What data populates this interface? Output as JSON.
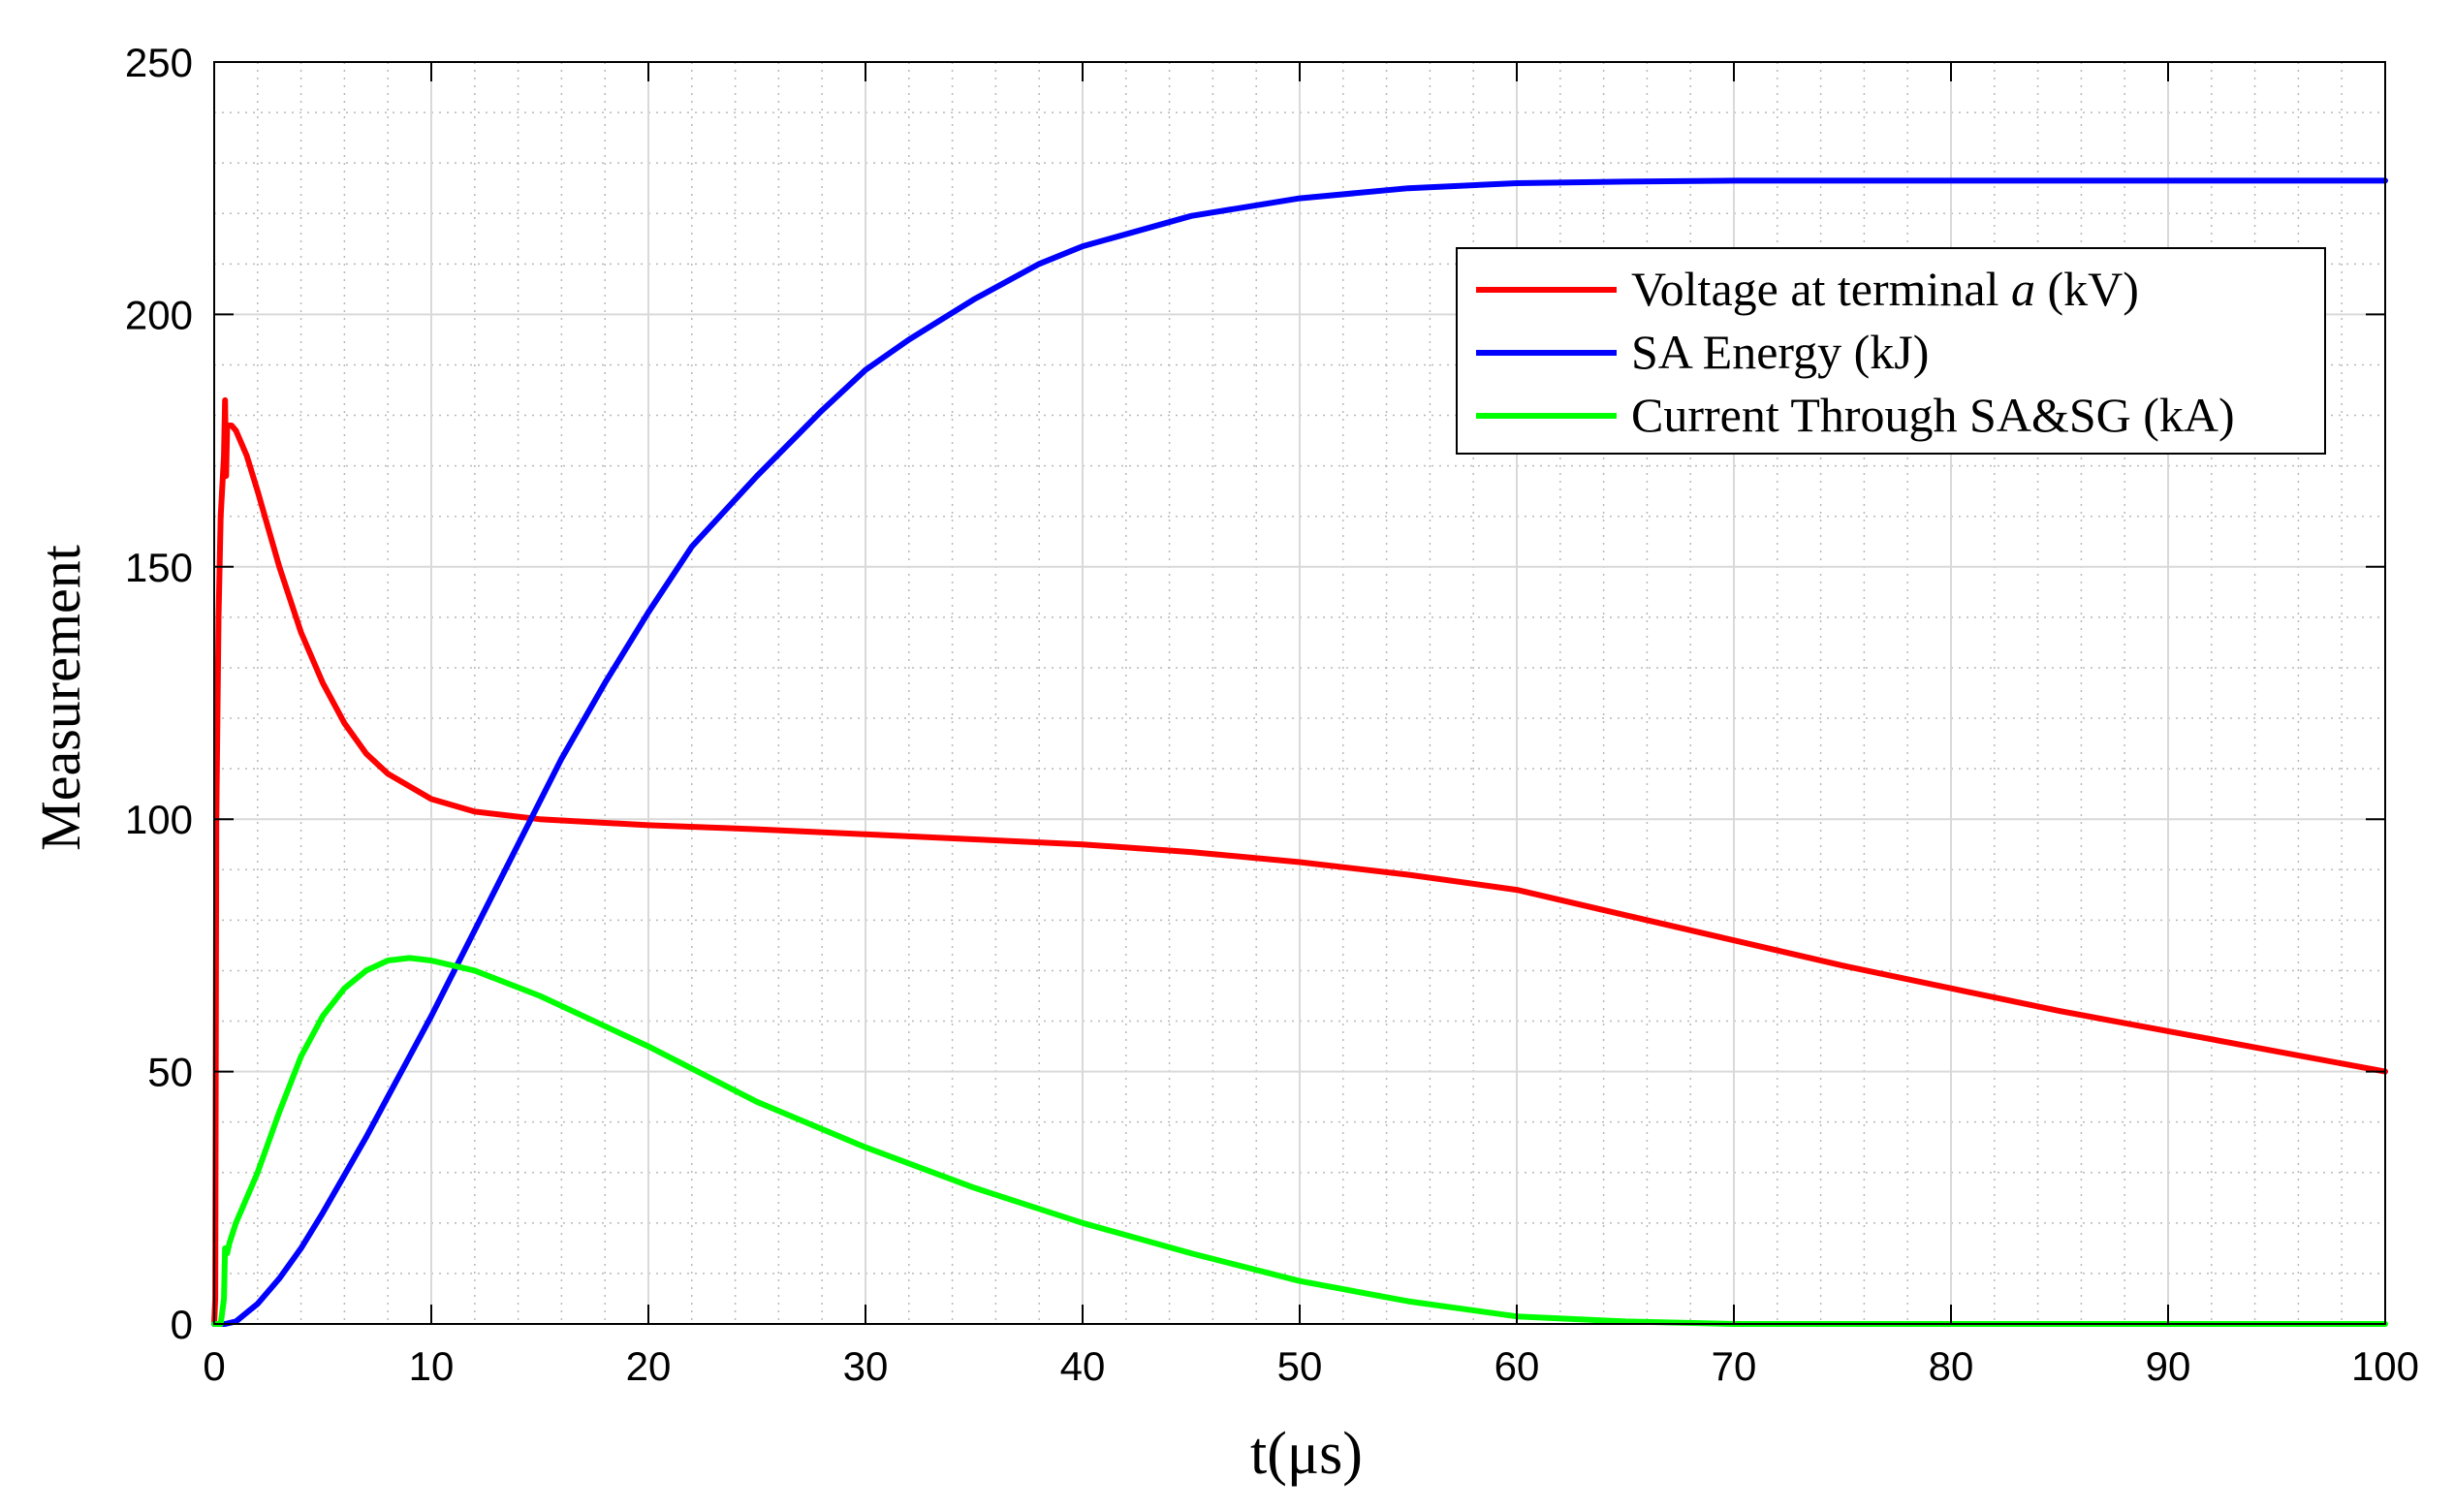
{
  "chart_data": {
    "type": "line",
    "title": "",
    "xlabel": "t(μs)",
    "ylabel": "Measurement",
    "xlim": [
      0,
      100
    ],
    "ylim": [
      0,
      250
    ],
    "x_ticks": [
      0,
      10,
      20,
      30,
      40,
      50,
      60,
      70,
      80,
      90,
      100
    ],
    "y_ticks": [
      0,
      50,
      100,
      150,
      200,
      250
    ],
    "grid": true,
    "minor_grid": true,
    "legend_position": "top-right",
    "series": [
      {
        "name": "Voltage at terminal a (kV)",
        "name_parts": [
          "Voltage at terminal ",
          "a",
          " (kV)"
        ],
        "color": "#ff0000",
        "points": [
          [
            0,
            0
          ],
          [
            0.05,
            5
          ],
          [
            0.1,
            100
          ],
          [
            0.2,
            140
          ],
          [
            0.3,
            160
          ],
          [
            0.45,
            172
          ],
          [
            0.5,
            183
          ],
          [
            0.55,
            168
          ],
          [
            0.6,
            178
          ],
          [
            0.8,
            178
          ],
          [
            1,
            177
          ],
          [
            1.5,
            172
          ],
          [
            2,
            165
          ],
          [
            3,
            150
          ],
          [
            4,
            137
          ],
          [
            5,
            127
          ],
          [
            6,
            119
          ],
          [
            7,
            113
          ],
          [
            8,
            109
          ],
          [
            10,
            104
          ],
          [
            12,
            101.5
          ],
          [
            15,
            100
          ],
          [
            20,
            98.8
          ],
          [
            25,
            98
          ],
          [
            30,
            97
          ],
          [
            35,
            96
          ],
          [
            40,
            95
          ],
          [
            45,
            93.5
          ],
          [
            50,
            91.5
          ],
          [
            55,
            89
          ],
          [
            60,
            86
          ],
          [
            65,
            81
          ],
          [
            70,
            76
          ],
          [
            75,
            71
          ],
          [
            80,
            66.5
          ],
          [
            85,
            62
          ],
          [
            90,
            58
          ],
          [
            95,
            54
          ],
          [
            100,
            50
          ]
        ]
      },
      {
        "name": "SA Energy (kJ)",
        "color": "#0000ff",
        "points": [
          [
            0,
            0
          ],
          [
            0.5,
            0
          ],
          [
            1,
            0.5
          ],
          [
            2,
            4
          ],
          [
            3,
            9
          ],
          [
            4,
            15
          ],
          [
            5,
            22
          ],
          [
            6,
            29.5
          ],
          [
            7,
            37
          ],
          [
            8,
            45
          ],
          [
            9,
            53
          ],
          [
            10,
            61
          ],
          [
            12,
            78
          ],
          [
            14,
            95
          ],
          [
            16,
            112
          ],
          [
            18,
            127
          ],
          [
            20,
            141
          ],
          [
            22,
            154
          ],
          [
            25,
            168
          ],
          [
            28,
            181
          ],
          [
            30,
            189
          ],
          [
            32,
            195
          ],
          [
            35,
            203
          ],
          [
            38,
            210
          ],
          [
            40,
            213.5
          ],
          [
            45,
            219.5
          ],
          [
            50,
            223
          ],
          [
            55,
            225
          ],
          [
            60,
            226
          ],
          [
            65,
            226.3
          ],
          [
            70,
            226.5
          ],
          [
            80,
            226.5
          ],
          [
            90,
            226.5
          ],
          [
            100,
            226.5
          ]
        ]
      },
      {
        "name": "Current Through SA&SG (kA)",
        "color": "#00ff00",
        "points": [
          [
            0,
            0
          ],
          [
            0.3,
            0
          ],
          [
            0.45,
            5
          ],
          [
            0.5,
            15
          ],
          [
            0.6,
            14
          ],
          [
            0.7,
            16
          ],
          [
            1,
            20
          ],
          [
            2,
            30
          ],
          [
            3,
            42
          ],
          [
            4,
            53
          ],
          [
            5,
            61
          ],
          [
            6,
            66.5
          ],
          [
            7,
            70
          ],
          [
            8,
            72
          ],
          [
            9,
            72.5
          ],
          [
            10,
            72
          ],
          [
            12,
            70
          ],
          [
            15,
            65
          ],
          [
            20,
            55
          ],
          [
            25,
            44
          ],
          [
            30,
            35
          ],
          [
            35,
            27
          ],
          [
            40,
            20
          ],
          [
            45,
            14
          ],
          [
            50,
            8.5
          ],
          [
            55,
            4.5
          ],
          [
            60,
            1.5
          ],
          [
            65,
            0.5
          ],
          [
            70,
            0
          ],
          [
            80,
            0
          ],
          [
            90,
            0
          ],
          [
            100,
            0
          ]
        ]
      }
    ]
  }
}
